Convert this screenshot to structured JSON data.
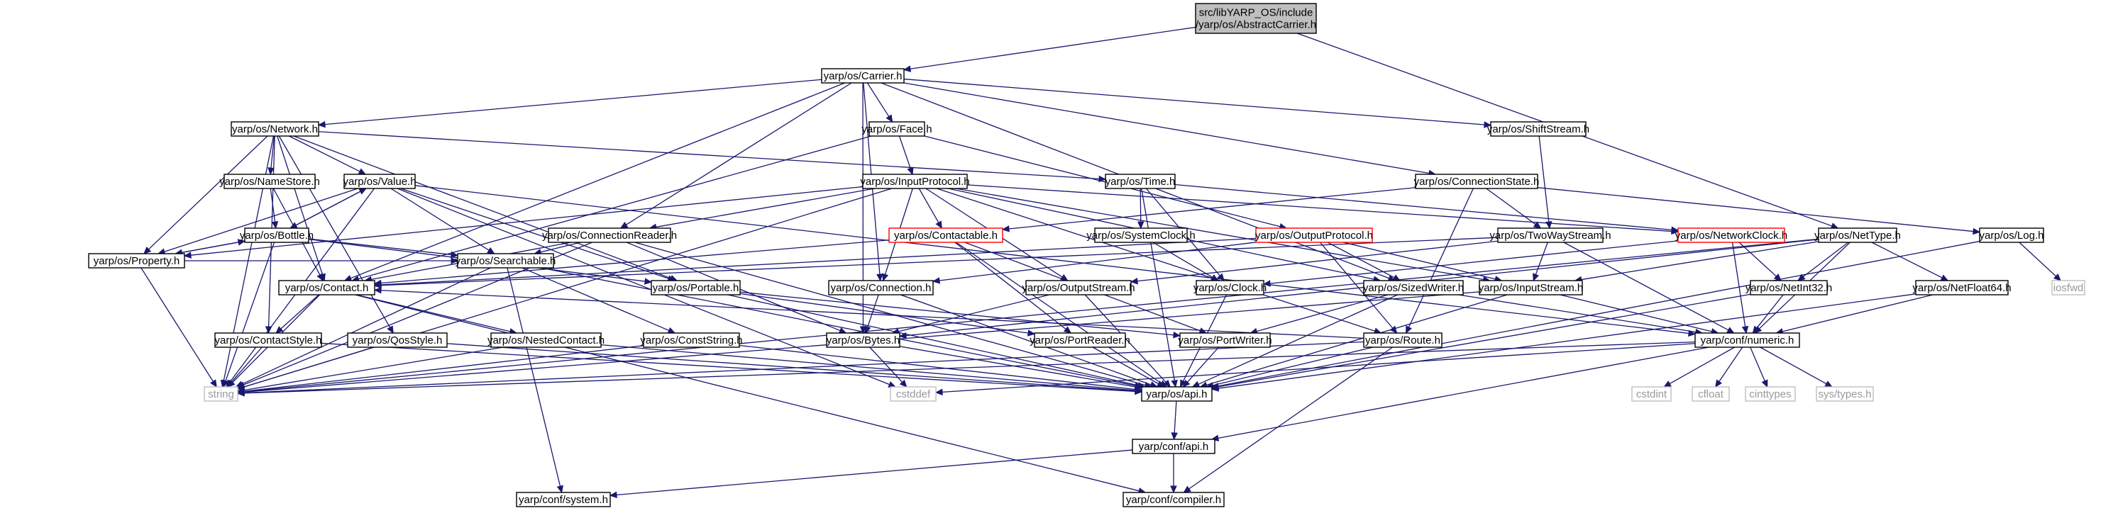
{
  "colors": {
    "edge": "#191970",
    "node_border": "#000000",
    "node_fill": "#ffffff",
    "root_fill": "#bfbfbf",
    "red_border": "#ff0000",
    "leaf_border": "#bfbfbf",
    "leaf_text": "#999999"
  },
  "nodes": {
    "root": {
      "lines": [
        "src/libYARP_OS/include",
        "/yarp/os/AbstractCarrier.h"
      ],
      "style": "root"
    },
    "carrier": {
      "lines": [
        "yarp/os/Carrier.h"
      ],
      "style": "normal"
    },
    "network": {
      "lines": [
        "yarp/os/Network.h"
      ],
      "style": "normal"
    },
    "face": {
      "lines": [
        "yarp/os/Face.h"
      ],
      "style": "normal"
    },
    "shiftstream": {
      "lines": [
        "yarp/os/ShiftStream.h"
      ],
      "style": "normal"
    },
    "nettype": {
      "lines": [
        "yarp/os/NetType.h"
      ],
      "style": "normal"
    },
    "namestore": {
      "lines": [
        "yarp/os/NameStore.h"
      ],
      "style": "normal"
    },
    "value": {
      "lines": [
        "yarp/os/Value.h"
      ],
      "style": "normal"
    },
    "inputprotocol": {
      "lines": [
        "yarp/os/InputProtocol.h"
      ],
      "style": "normal"
    },
    "time": {
      "lines": [
        "yarp/os/Time.h"
      ],
      "style": "normal"
    },
    "connectionstate": {
      "lines": [
        "yarp/os/ConnectionState.h"
      ],
      "style": "normal"
    },
    "bottle": {
      "lines": [
        "yarp/os/Bottle.h"
      ],
      "style": "normal"
    },
    "connectionreader": {
      "lines": [
        "yarp/os/ConnectionReader.h"
      ],
      "style": "normal"
    },
    "contactable": {
      "lines": [
        "yarp/os/Contactable.h"
      ],
      "style": "red"
    },
    "systemclock": {
      "lines": [
        "yarp/os/SystemClock.h"
      ],
      "style": "normal"
    },
    "outputprotocol": {
      "lines": [
        "yarp/os/OutputProtocol.h"
      ],
      "style": "red"
    },
    "twowaystream": {
      "lines": [
        "yarp/os/TwoWayStream.h"
      ],
      "style": "normal"
    },
    "networkclock": {
      "lines": [
        "yarp/os/NetworkClock.h"
      ],
      "style": "red"
    },
    "log": {
      "lines": [
        "yarp/os/Log.h"
      ],
      "style": "normal"
    },
    "property": {
      "lines": [
        "yarp/os/Property.h"
      ],
      "style": "normal"
    },
    "contact": {
      "lines": [
        "yarp/os/Contact.h"
      ],
      "style": "normal"
    },
    "searchable": {
      "lines": [
        "yarp/os/Searchable.h"
      ],
      "style": "normal"
    },
    "portable": {
      "lines": [
        "yarp/os/Portable.h"
      ],
      "style": "normal"
    },
    "connection": {
      "lines": [
        "yarp/os/Connection.h"
      ],
      "style": "normal"
    },
    "outputstream": {
      "lines": [
        "yarp/os/OutputStream.h"
      ],
      "style": "normal"
    },
    "clock": {
      "lines": [
        "yarp/os/Clock.h"
      ],
      "style": "normal"
    },
    "sizedwriter": {
      "lines": [
        "yarp/os/SizedWriter.h"
      ],
      "style": "normal"
    },
    "inputstream": {
      "lines": [
        "yarp/os/InputStream.h"
      ],
      "style": "normal"
    },
    "netint32": {
      "lines": [
        "yarp/os/NetInt32.h"
      ],
      "style": "normal"
    },
    "netfloat64": {
      "lines": [
        "yarp/os/NetFloat64.h"
      ],
      "style": "normal"
    },
    "iosfwd": {
      "lines": [
        "iosfwd"
      ],
      "style": "leaf"
    },
    "contactstyle": {
      "lines": [
        "yarp/os/ContactStyle.h"
      ],
      "style": "normal"
    },
    "qosstyle": {
      "lines": [
        "yarp/os/QosStyle.h"
      ],
      "style": "normal"
    },
    "nestedcontact": {
      "lines": [
        "yarp/os/NestedContact.h"
      ],
      "style": "normal"
    },
    "conststring": {
      "lines": [
        "yarp/os/ConstString.h"
      ],
      "style": "normal"
    },
    "bytes": {
      "lines": [
        "yarp/os/Bytes.h"
      ],
      "style": "normal"
    },
    "portreader": {
      "lines": [
        "yarp/os/PortReader.h"
      ],
      "style": "normal"
    },
    "portwriter": {
      "lines": [
        "yarp/os/PortWriter.h"
      ],
      "style": "normal"
    },
    "route": {
      "lines": [
        "yarp/os/Route.h"
      ],
      "style": "normal"
    },
    "numeric": {
      "lines": [
        "yarp/conf/numeric.h"
      ],
      "style": "normal"
    },
    "string": {
      "lines": [
        "string"
      ],
      "style": "leaf"
    },
    "cstddef": {
      "lines": [
        "cstddef"
      ],
      "style": "leaf"
    },
    "api": {
      "lines": [
        "yarp/os/api.h"
      ],
      "style": "normal"
    },
    "cstdint": {
      "lines": [
        "cstdint"
      ],
      "style": "leaf"
    },
    "cfloat": {
      "lines": [
        "cfloat"
      ],
      "style": "leaf"
    },
    "cinttypes": {
      "lines": [
        "cinttypes"
      ],
      "style": "leaf"
    },
    "systypes": {
      "lines": [
        "sys/types.h"
      ],
      "style": "leaf"
    },
    "confapi": {
      "lines": [
        "yarp/conf/api.h"
      ],
      "style": "normal"
    },
    "confsystem": {
      "lines": [
        "yarp/conf/system.h"
      ],
      "style": "normal"
    },
    "confcompiler": {
      "lines": [
        "yarp/conf/compiler.h"
      ],
      "style": "normal"
    }
  },
  "edges": [
    [
      "root",
      "carrier"
    ],
    [
      "root",
      "nettype"
    ],
    [
      "carrier",
      "network"
    ],
    [
      "carrier",
      "face"
    ],
    [
      "carrier",
      "shiftstream"
    ],
    [
      "carrier",
      "connectionstate"
    ],
    [
      "carrier",
      "connectionreader"
    ],
    [
      "carrier",
      "contact"
    ],
    [
      "carrier",
      "connection"
    ],
    [
      "carrier",
      "bytes"
    ],
    [
      "carrier",
      "sizedwriter"
    ],
    [
      "network",
      "namestore"
    ],
    [
      "network",
      "value"
    ],
    [
      "network",
      "time"
    ],
    [
      "network",
      "property"
    ],
    [
      "network",
      "contact"
    ],
    [
      "network",
      "portable"
    ],
    [
      "network",
      "contactstyle"
    ],
    [
      "network",
      "qosstyle"
    ],
    [
      "network",
      "string"
    ],
    [
      "face",
      "inputprotocol"
    ],
    [
      "face",
      "outputprotocol"
    ],
    [
      "face",
      "contact"
    ],
    [
      "shiftstream",
      "twowaystream"
    ],
    [
      "namestore",
      "bottle"
    ],
    [
      "namestore",
      "contact"
    ],
    [
      "value",
      "bottle"
    ],
    [
      "value",
      "searchable"
    ],
    [
      "value",
      "portable"
    ],
    [
      "value",
      "property"
    ],
    [
      "value",
      "string"
    ],
    [
      "value",
      "cstddef"
    ],
    [
      "value",
      "numeric"
    ],
    [
      "inputprotocol",
      "connectionreader"
    ],
    [
      "inputprotocol",
      "contactable"
    ],
    [
      "inputprotocol",
      "connection"
    ],
    [
      "inputprotocol",
      "outputstream"
    ],
    [
      "inputprotocol",
      "inputstream"
    ],
    [
      "inputprotocol",
      "sizedwriter"
    ],
    [
      "inputprotocol",
      "route"
    ],
    [
      "inputprotocol",
      "property"
    ],
    [
      "inputprotocol",
      "string"
    ],
    [
      "inputprotocol",
      "networkclock"
    ],
    [
      "time",
      "systemclock"
    ],
    [
      "time",
      "clock"
    ],
    [
      "time",
      "networkclock"
    ],
    [
      "time",
      "api"
    ],
    [
      "connectionstate",
      "twowaystream"
    ],
    [
      "connectionstate",
      "route"
    ],
    [
      "connectionstate",
      "log"
    ],
    [
      "connectionstate",
      "contactable"
    ],
    [
      "bottle",
      "value"
    ],
    [
      "bottle",
      "searchable"
    ],
    [
      "bottle",
      "portable"
    ],
    [
      "bottle",
      "property"
    ],
    [
      "bottle",
      "string"
    ],
    [
      "connectionreader",
      "contact"
    ],
    [
      "connectionreader",
      "searchable"
    ],
    [
      "connectionreader",
      "bytes"
    ],
    [
      "connectionreader",
      "api"
    ],
    [
      "connectionreader",
      "string"
    ],
    [
      "contactable",
      "contact"
    ],
    [
      "contactable",
      "portreader"
    ],
    [
      "contactable",
      "portwriter"
    ],
    [
      "contactable",
      "api"
    ],
    [
      "systemclock",
      "clock"
    ],
    [
      "outputprotocol",
      "connection"
    ],
    [
      "outputprotocol",
      "sizedwriter"
    ],
    [
      "outputprotocol",
      "inputstream"
    ],
    [
      "outputprotocol",
      "route"
    ],
    [
      "outputprotocol",
      "contact"
    ],
    [
      "twowaystream",
      "outputstream"
    ],
    [
      "twowaystream",
      "inputstream"
    ],
    [
      "twowaystream",
      "contact"
    ],
    [
      "twowaystream",
      "numeric"
    ],
    [
      "networkclock",
      "clock"
    ],
    [
      "networkclock",
      "numeric"
    ],
    [
      "networkclock",
      "netint32"
    ],
    [
      "nettype",
      "netint32"
    ],
    [
      "nettype",
      "netfloat64"
    ],
    [
      "nettype",
      "numeric"
    ],
    [
      "nettype",
      "bytes"
    ],
    [
      "nettype",
      "inputstream"
    ],
    [
      "nettype",
      "string"
    ],
    [
      "log",
      "iosfwd"
    ],
    [
      "log",
      "api"
    ],
    [
      "property",
      "searchable"
    ],
    [
      "property",
      "bottle"
    ],
    [
      "property",
      "string"
    ],
    [
      "contact",
      "contactstyle"
    ],
    [
      "contact",
      "nestedcontact"
    ],
    [
      "contact",
      "string"
    ],
    [
      "contact",
      "confcompiler"
    ],
    [
      "searchable",
      "conststring"
    ],
    [
      "searchable",
      "string"
    ],
    [
      "searchable",
      "api"
    ],
    [
      "searchable",
      "confsystem"
    ],
    [
      "portable",
      "portreader"
    ],
    [
      "portable",
      "portwriter"
    ],
    [
      "portable",
      "api"
    ],
    [
      "connection",
      "bytes"
    ],
    [
      "connection",
      "api"
    ],
    [
      "outputstream",
      "bytes"
    ],
    [
      "outputstream",
      "api"
    ],
    [
      "clock",
      "api"
    ],
    [
      "sizedwriter",
      "portwriter"
    ],
    [
      "sizedwriter",
      "numeric"
    ],
    [
      "sizedwriter",
      "api"
    ],
    [
      "inputstream",
      "numeric"
    ],
    [
      "inputstream",
      "string"
    ],
    [
      "inputstream",
      "api"
    ],
    [
      "netint32",
      "numeric"
    ],
    [
      "netint32",
      "api"
    ],
    [
      "netfloat64",
      "numeric"
    ],
    [
      "netfloat64",
      "api"
    ],
    [
      "contactstyle",
      "string"
    ],
    [
      "contactstyle",
      "api"
    ],
    [
      "qosstyle",
      "string"
    ],
    [
      "qosstyle",
      "api"
    ],
    [
      "nestedcontact",
      "string"
    ],
    [
      "nestedcontact",
      "api"
    ],
    [
      "conststring",
      "string"
    ],
    [
      "conststring",
      "api"
    ],
    [
      "bytes",
      "cstddef"
    ],
    [
      "bytes",
      "api"
    ],
    [
      "portreader",
      "api"
    ],
    [
      "portwriter",
      "api"
    ],
    [
      "route",
      "contact"
    ],
    [
      "route",
      "api"
    ],
    [
      "route",
      "string"
    ],
    [
      "route",
      "confcompiler"
    ],
    [
      "numeric",
      "cstdint"
    ],
    [
      "numeric",
      "cfloat"
    ],
    [
      "numeric",
      "cinttypes"
    ],
    [
      "numeric",
      "systypes"
    ],
    [
      "numeric",
      "cstddef"
    ],
    [
      "numeric",
      "confapi"
    ],
    [
      "numeric",
      "string"
    ],
    [
      "api",
      "confapi"
    ],
    [
      "confapi",
      "confsystem"
    ],
    [
      "confapi",
      "confcompiler"
    ]
  ]
}
